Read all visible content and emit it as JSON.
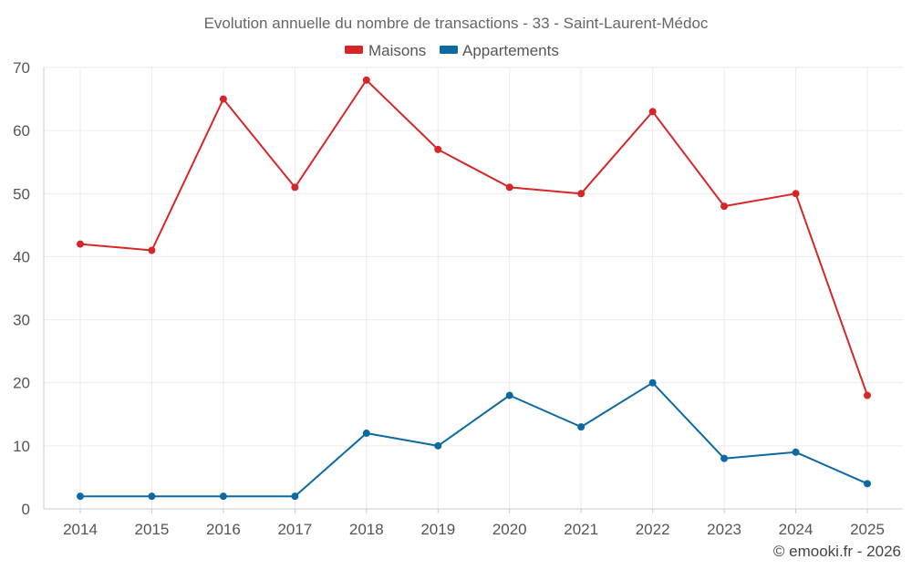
{
  "chart_data": {
    "type": "line",
    "title": "Evolution annuelle du nombre de transactions - 33 - Saint-Laurent-Médoc",
    "categories": [
      "2014",
      "2015",
      "2016",
      "2017",
      "2018",
      "2019",
      "2020",
      "2021",
      "2022",
      "2023",
      "2024",
      "2025"
    ],
    "series": [
      {
        "name": "Maisons",
        "color": "#d62728",
        "values": [
          42,
          41,
          65,
          51,
          68,
          57,
          51,
          50,
          63,
          48,
          50,
          18
        ]
      },
      {
        "name": "Appartements",
        "color": "#0b6aa2",
        "values": [
          2,
          2,
          2,
          2,
          12,
          10,
          18,
          13,
          20,
          8,
          9,
          4
        ]
      }
    ],
    "ylim": [
      0,
      70
    ],
    "yticks": [
      0,
      10,
      20,
      30,
      40,
      50,
      60,
      70
    ],
    "xlabel": "",
    "ylabel": "",
    "grid": true,
    "legend": "top-center"
  },
  "credit": "© emooki.fr - 2026"
}
